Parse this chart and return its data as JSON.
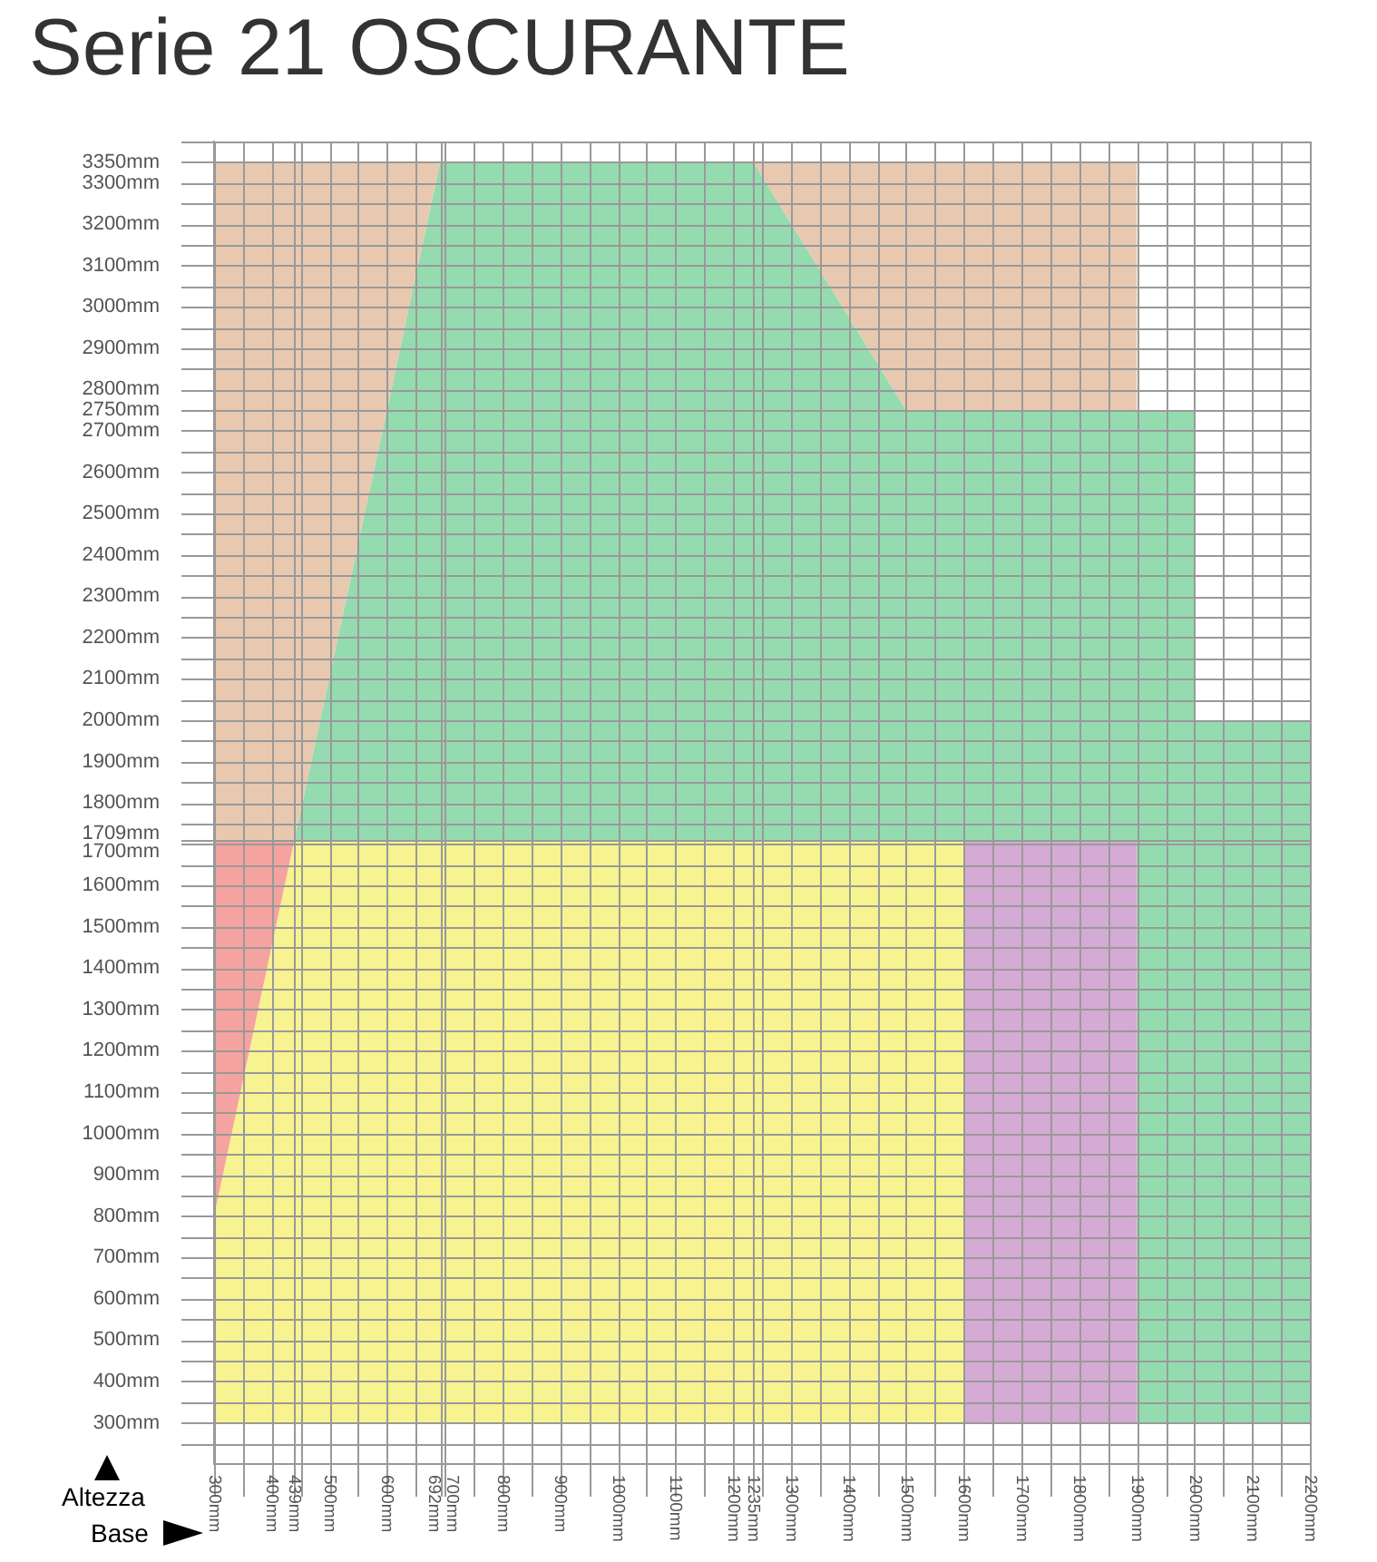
{
  "chart_data": {
    "type": "area",
    "title": "Serie 21 OSCURANTE",
    "xlabel": "Base",
    "ylabel": "Altezza",
    "xlim": [
      300,
      2200
    ],
    "ylim": [
      200,
      3400
    ],
    "xticks": [
      {
        "value": 300,
        "label": "300mm"
      },
      {
        "value": 350,
        "label": null
      },
      {
        "value": 400,
        "label": "400mm"
      },
      {
        "value": 439,
        "label": "439mm"
      },
      {
        "value": 450,
        "label": null
      },
      {
        "value": 500,
        "label": "500mm"
      },
      {
        "value": 550,
        "label": null
      },
      {
        "value": 600,
        "label": "600mm"
      },
      {
        "value": 650,
        "label": null
      },
      {
        "value": 692,
        "label": "692mm"
      },
      {
        "value": 700,
        "label": "700mm"
      },
      {
        "value": 750,
        "label": null
      },
      {
        "value": 800,
        "label": "800mm"
      },
      {
        "value": 850,
        "label": null
      },
      {
        "value": 900,
        "label": "900mm"
      },
      {
        "value": 950,
        "label": null
      },
      {
        "value": 1000,
        "label": "1000mm"
      },
      {
        "value": 1050,
        "label": null
      },
      {
        "value": 1100,
        "label": "1100mm"
      },
      {
        "value": 1150,
        "label": null
      },
      {
        "value": 1200,
        "label": "1200mm"
      },
      {
        "value": 1235,
        "label": "1235mm"
      },
      {
        "value": 1250,
        "label": null
      },
      {
        "value": 1300,
        "label": "1300mm"
      },
      {
        "value": 1350,
        "label": null
      },
      {
        "value": 1400,
        "label": "1400mm"
      },
      {
        "value": 1450,
        "label": null
      },
      {
        "value": 1500,
        "label": "1500mm"
      },
      {
        "value": 1550,
        "label": null
      },
      {
        "value": 1600,
        "label": "1600mm"
      },
      {
        "value": 1650,
        "label": null
      },
      {
        "value": 1700,
        "label": "1700mm"
      },
      {
        "value": 1750,
        "label": null
      },
      {
        "value": 1800,
        "label": "1800mm"
      },
      {
        "value": 1850,
        "label": null
      },
      {
        "value": 1900,
        "label": "1900mm"
      },
      {
        "value": 1950,
        "label": null
      },
      {
        "value": 2000,
        "label": "2000mm"
      },
      {
        "value": 2050,
        "label": null
      },
      {
        "value": 2100,
        "label": "2100mm"
      },
      {
        "value": 2150,
        "label": null
      },
      {
        "value": 2200,
        "label": "2200mm"
      }
    ],
    "yticks": [
      {
        "value": 250,
        "label": null
      },
      {
        "value": 300,
        "label": "300mm"
      },
      {
        "value": 350,
        "label": null
      },
      {
        "value": 400,
        "label": "400mm"
      },
      {
        "value": 450,
        "label": null
      },
      {
        "value": 500,
        "label": "500mm"
      },
      {
        "value": 550,
        "label": null
      },
      {
        "value": 600,
        "label": "600mm"
      },
      {
        "value": 650,
        "label": null
      },
      {
        "value": 700,
        "label": "700mm"
      },
      {
        "value": 750,
        "label": null
      },
      {
        "value": 800,
        "label": "800mm"
      },
      {
        "value": 850,
        "label": null
      },
      {
        "value": 900,
        "label": "900mm"
      },
      {
        "value": 950,
        "label": null
      },
      {
        "value": 1000,
        "label": "1000mm"
      },
      {
        "value": 1050,
        "label": null
      },
      {
        "value": 1100,
        "label": "1100mm"
      },
      {
        "value": 1150,
        "label": null
      },
      {
        "value": 1200,
        "label": "1200mm"
      },
      {
        "value": 1250,
        "label": null
      },
      {
        "value": 1300,
        "label": "1300mm"
      },
      {
        "value": 1350,
        "label": null
      },
      {
        "value": 1400,
        "label": "1400mm"
      },
      {
        "value": 1450,
        "label": null
      },
      {
        "value": 1500,
        "label": "1500mm"
      },
      {
        "value": 1550,
        "label": null
      },
      {
        "value": 1600,
        "label": "1600mm"
      },
      {
        "value": 1650,
        "label": null
      },
      {
        "value": 1700,
        "label": "1700mm"
      },
      {
        "value": 1709,
        "label": "1709mm"
      },
      {
        "value": 1750,
        "label": null
      },
      {
        "value": 1800,
        "label": "1800mm"
      },
      {
        "value": 1850,
        "label": null
      },
      {
        "value": 1900,
        "label": "1900mm"
      },
      {
        "value": 1950,
        "label": null
      },
      {
        "value": 2000,
        "label": "2000mm"
      },
      {
        "value": 2050,
        "label": null
      },
      {
        "value": 2100,
        "label": "2100mm"
      },
      {
        "value": 2150,
        "label": null
      },
      {
        "value": 2200,
        "label": "2200mm"
      },
      {
        "value": 2250,
        "label": null
      },
      {
        "value": 2300,
        "label": "2300mm"
      },
      {
        "value": 2350,
        "label": null
      },
      {
        "value": 2400,
        "label": "2400mm"
      },
      {
        "value": 2450,
        "label": null
      },
      {
        "value": 2500,
        "label": "2500mm"
      },
      {
        "value": 2550,
        "label": null
      },
      {
        "value": 2600,
        "label": "2600mm"
      },
      {
        "value": 2650,
        "label": null
      },
      {
        "value": 2700,
        "label": "2700mm"
      },
      {
        "value": 2750,
        "label": "2750mm"
      },
      {
        "value": 2800,
        "label": "2800mm"
      },
      {
        "value": 2850,
        "label": null
      },
      {
        "value": 2900,
        "label": "2900mm"
      },
      {
        "value": 2950,
        "label": null
      },
      {
        "value": 3000,
        "label": "3000mm"
      },
      {
        "value": 3050,
        "label": null
      },
      {
        "value": 3100,
        "label": "3100mm"
      },
      {
        "value": 3150,
        "label": null
      },
      {
        "value": 3200,
        "label": "3200mm"
      },
      {
        "value": 3250,
        "label": null
      },
      {
        "value": 3300,
        "label": "3300mm"
      },
      {
        "value": 3350,
        "label": "3350mm"
      },
      {
        "value": 3400,
        "label": null
      }
    ],
    "grid": true,
    "series": [
      {
        "color": "#e8c9b0",
        "x": [
          300,
          692,
          1235,
          1500,
          1900,
          1900,
          1500,
          1235,
          692,
          439,
          300
        ],
        "values": [
          3350,
          3350,
          3350,
          2750,
          2750,
          3350,
          3350,
          3350,
          3350,
          1709,
          1709
        ]
      },
      {
        "color": "#95dbb0",
        "x": [
          439,
          692,
          1235,
          1500,
          2000,
          2000,
          2200,
          2200,
          1900,
          1900,
          439
        ],
        "values": [
          1709,
          3350,
          3350,
          2750,
          2750,
          2000,
          2000,
          300,
          300,
          1709,
          1709
        ]
      },
      {
        "color": "#f5a3a0",
        "x": [
          300,
          439,
          300
        ],
        "values": [
          1709,
          1709,
          800
        ]
      },
      {
        "color": "#f7f390",
        "x": [
          300,
          439,
          1600,
          1600,
          300
        ],
        "values": [
          800,
          1709,
          1709,
          300,
          300
        ]
      },
      {
        "color": "#d4abd4",
        "x": [
          1600,
          1900,
          1900,
          1600
        ],
        "values": [
          1709,
          1709,
          300,
          300
        ]
      }
    ]
  }
}
